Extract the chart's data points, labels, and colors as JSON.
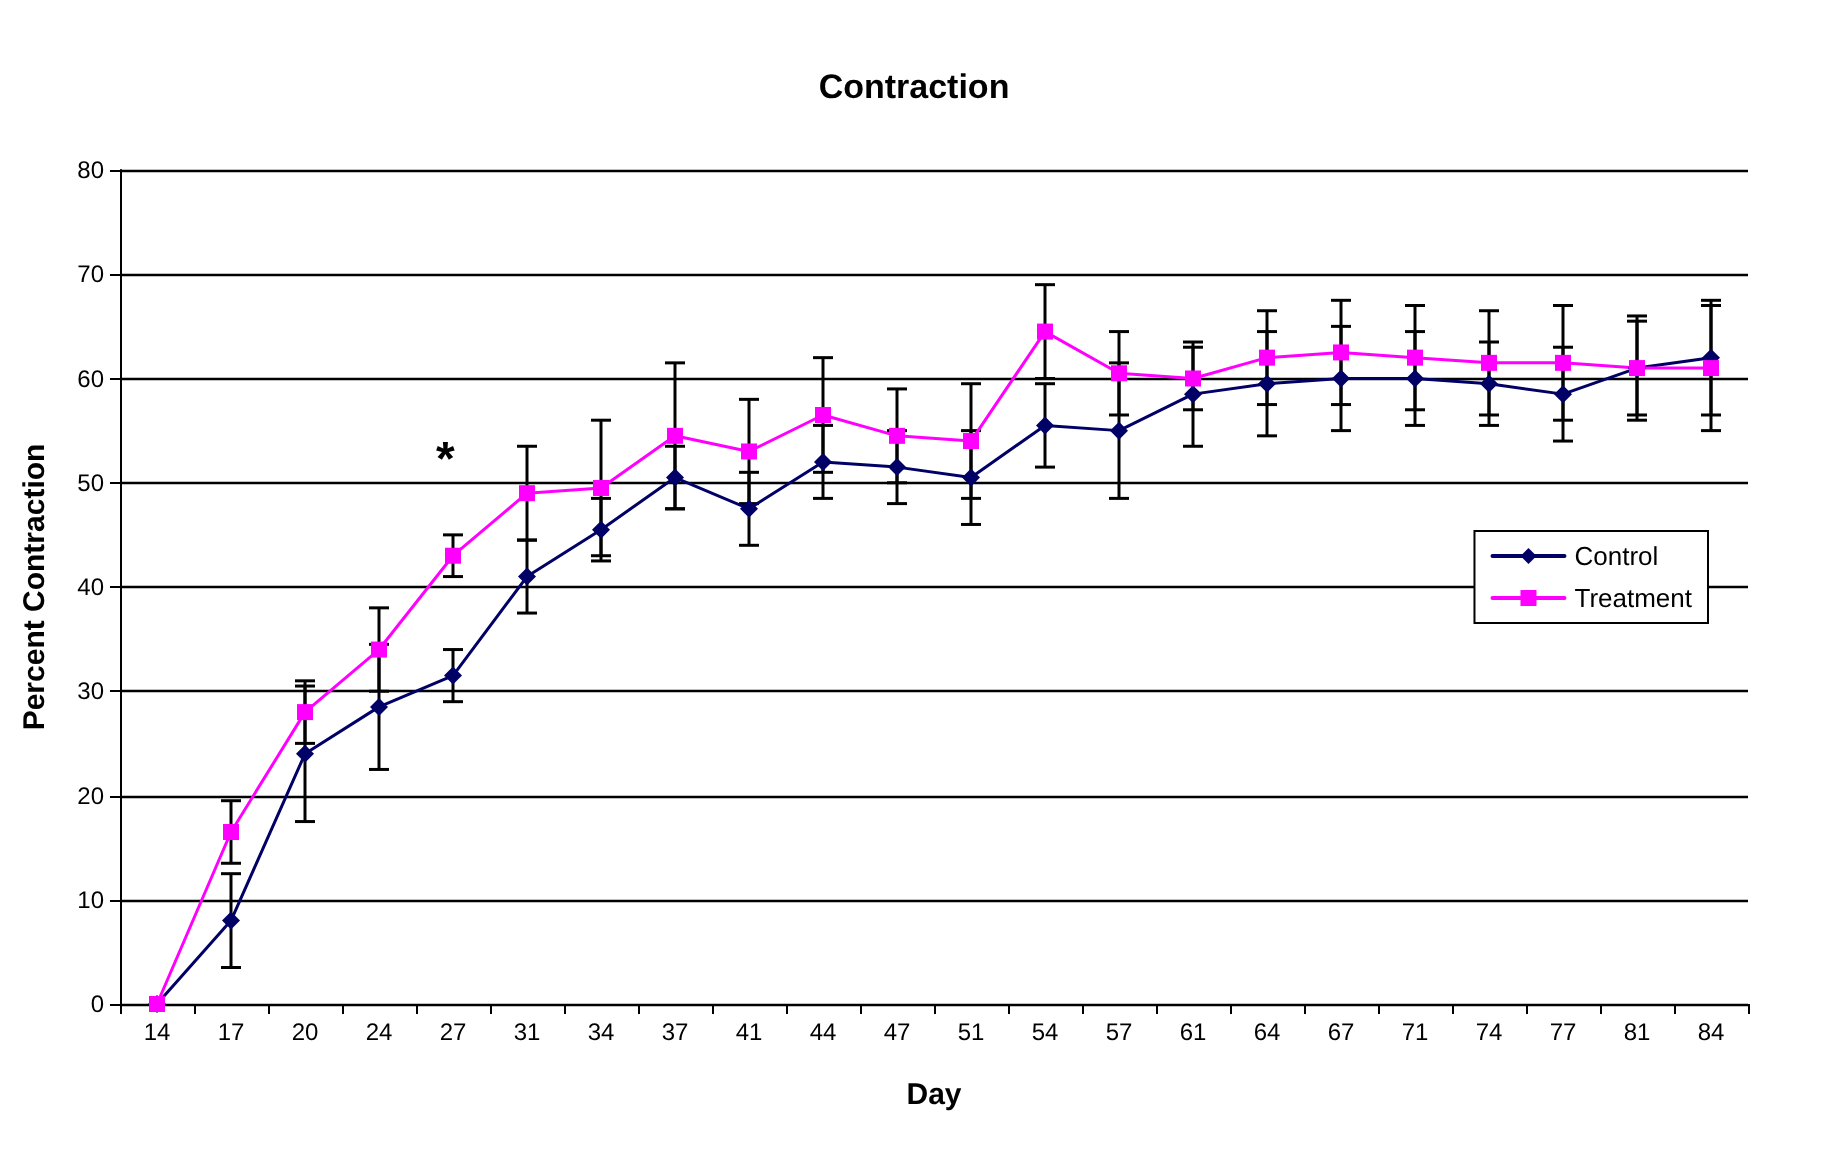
{
  "chart_data": {
    "type": "line",
    "title": "Contraction",
    "xlabel": "Day",
    "ylabel": "Percent Contraction",
    "categories": [
      "14",
      "17",
      "20",
      "24",
      "27",
      "31",
      "34",
      "37",
      "41",
      "44",
      "47",
      "51",
      "54",
      "57",
      "61",
      "64",
      "67",
      "71",
      "74",
      "77",
      "81",
      "84"
    ],
    "series": [
      {
        "name": "Control",
        "color": "#000066",
        "marker": "diamond",
        "values": [
          0,
          8,
          24,
          28.5,
          31.5,
          41,
          45.5,
          50.5,
          47.5,
          52,
          51.5,
          50.5,
          55.5,
          55,
          58.5,
          59.5,
          60,
          60,
          59.5,
          58.5,
          61,
          62
        ],
        "errors": [
          null,
          4.5,
          6.5,
          6,
          2.5,
          3.5,
          3,
          3,
          3.5,
          3.5,
          3.5,
          4.5,
          4,
          6.5,
          5,
          5,
          5,
          4.5,
          4,
          4.5,
          5,
          5.5
        ]
      },
      {
        "name": "Treatment",
        "color": "#ff00ff",
        "marker": "square",
        "values": [
          0,
          16.5,
          28,
          34,
          43,
          49,
          49.5,
          54.5,
          53,
          56.5,
          54.5,
          54,
          64.5,
          60.5,
          60,
          62,
          62.5,
          62,
          61.5,
          61.5,
          61,
          61
        ],
        "errors": [
          null,
          3,
          3,
          4,
          2,
          4.5,
          6.5,
          7,
          5,
          5.5,
          4.5,
          5.5,
          4.5,
          4,
          3,
          4.5,
          5,
          5,
          5,
          5.5,
          4.5,
          6
        ]
      }
    ],
    "annotations": [
      "*"
    ],
    "ylim": [
      0,
      80
    ],
    "yticks": [
      0,
      10,
      20,
      30,
      40,
      50,
      60,
      70,
      80
    ],
    "grid": "y",
    "legend": "right",
    "line_style": "solid"
  }
}
